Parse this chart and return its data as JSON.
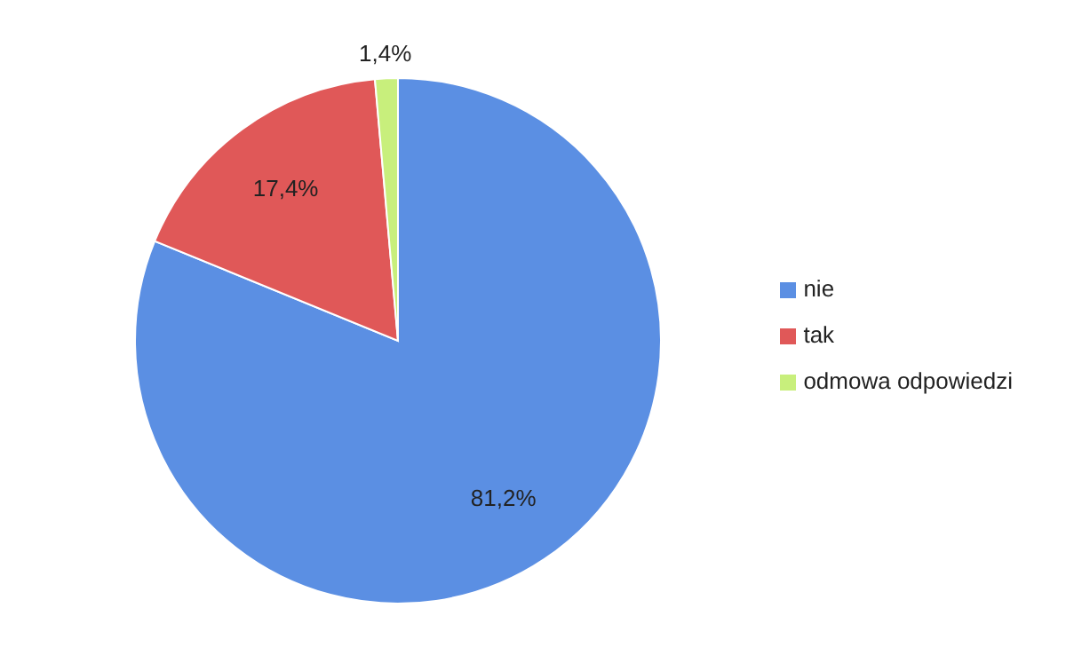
{
  "chart_data": {
    "type": "pie",
    "categories": [
      "nie",
      "tak",
      "odmowa odpowiedzi"
    ],
    "values": [
      81.2,
      17.4,
      1.4
    ],
    "colors": [
      "#5b8fe3",
      "#e05858",
      "#c8ef7c"
    ],
    "value_labels": [
      "81,2%",
      "17,4%",
      "1,4%"
    ],
    "legend": "right"
  }
}
